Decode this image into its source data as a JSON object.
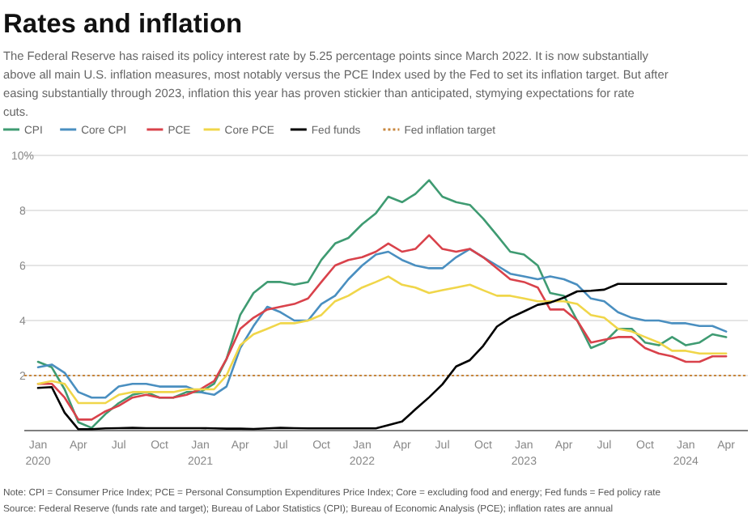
{
  "chart_data": {
    "type": "line",
    "title": "Rates and inflation",
    "subtitle": "The Federal Reserve has raised its policy interest rate by 5.25 percentage points since March 2022. It is now substantially above all main U.S. inflation measures, most notably versus the PCE Index used by the Fed to set its inflation target. But after easing substantially through 2023, inflation this year has proven stickier than anticipated, stymying expectations for rate cuts.",
    "x": [
      "2020-01",
      "2020-02",
      "2020-03",
      "2020-04",
      "2020-05",
      "2020-06",
      "2020-07",
      "2020-08",
      "2020-09",
      "2020-10",
      "2020-11",
      "2020-12",
      "2021-01",
      "2021-02",
      "2021-03",
      "2021-04",
      "2021-05",
      "2021-06",
      "2021-07",
      "2021-08",
      "2021-09",
      "2021-10",
      "2021-11",
      "2021-12",
      "2022-01",
      "2022-02",
      "2022-03",
      "2022-04",
      "2022-05",
      "2022-06",
      "2022-07",
      "2022-08",
      "2022-09",
      "2022-10",
      "2022-11",
      "2022-12",
      "2023-01",
      "2023-02",
      "2023-03",
      "2023-04",
      "2023-05",
      "2023-06",
      "2023-07",
      "2023-08",
      "2023-09",
      "2023-10",
      "2023-11",
      "2023-12",
      "2024-01",
      "2024-02",
      "2024-03",
      "2024-04"
    ],
    "series": [
      {
        "name": "CPI",
        "color": "#3f9b72",
        "values": [
          2.5,
          2.3,
          1.5,
          0.3,
          0.1,
          0.6,
          1.0,
          1.3,
          1.4,
          1.2,
          1.2,
          1.4,
          1.4,
          1.7,
          2.6,
          4.2,
          5.0,
          5.4,
          5.4,
          5.3,
          5.4,
          6.2,
          6.8,
          7.0,
          7.5,
          7.9,
          8.5,
          8.3,
          8.6,
          9.1,
          8.5,
          8.3,
          8.2,
          7.7,
          7.1,
          6.5,
          6.4,
          6.0,
          5.0,
          4.9,
          4.0,
          3.0,
          3.2,
          3.7,
          3.7,
          3.2,
          3.1,
          3.4,
          3.1,
          3.2,
          3.5,
          3.4
        ]
      },
      {
        "name": "Core CPI",
        "color": "#4a8fc0",
        "values": [
          2.3,
          2.4,
          2.1,
          1.4,
          1.2,
          1.2,
          1.6,
          1.7,
          1.7,
          1.6,
          1.6,
          1.6,
          1.4,
          1.3,
          1.6,
          3.0,
          3.8,
          4.5,
          4.3,
          4.0,
          4.0,
          4.6,
          4.9,
          5.5,
          6.0,
          6.4,
          6.5,
          6.2,
          6.0,
          5.9,
          5.9,
          6.3,
          6.6,
          6.3,
          6.0,
          5.7,
          5.6,
          5.5,
          5.6,
          5.5,
          5.3,
          4.8,
          4.7,
          4.3,
          4.1,
          4.0,
          4.0,
          3.9,
          3.9,
          3.8,
          3.8,
          3.6
        ]
      },
      {
        "name": "PCE",
        "color": "#d9424b",
        "values": [
          1.7,
          1.7,
          1.2,
          0.4,
          0.4,
          0.7,
          0.9,
          1.2,
          1.3,
          1.2,
          1.2,
          1.3,
          1.5,
          1.8,
          2.6,
          3.7,
          4.1,
          4.4,
          4.5,
          4.6,
          4.8,
          5.4,
          6.0,
          6.2,
          6.3,
          6.5,
          6.8,
          6.5,
          6.6,
          7.1,
          6.6,
          6.5,
          6.6,
          6.3,
          5.9,
          5.5,
          5.4,
          5.2,
          4.4,
          4.4,
          4.0,
          3.2,
          3.3,
          3.4,
          3.4,
          3.0,
          2.8,
          2.7,
          2.5,
          2.5,
          2.7,
          2.7
        ]
      },
      {
        "name": "Core PCE",
        "color": "#f0d64a",
        "values": [
          1.7,
          1.8,
          1.7,
          1.0,
          1.0,
          1.0,
          1.3,
          1.4,
          1.4,
          1.4,
          1.4,
          1.5,
          1.5,
          1.5,
          2.0,
          3.1,
          3.5,
          3.7,
          3.9,
          3.9,
          4.0,
          4.2,
          4.7,
          4.9,
          5.2,
          5.4,
          5.6,
          5.3,
          5.2,
          5.0,
          5.1,
          5.2,
          5.3,
          5.1,
          4.9,
          4.9,
          4.8,
          4.7,
          4.7,
          4.7,
          4.6,
          4.2,
          4.1,
          3.7,
          3.6,
          3.4,
          3.2,
          2.9,
          2.9,
          2.8,
          2.8,
          2.8
        ]
      },
      {
        "name": "Fed funds",
        "color": "#000000",
        "values": [
          1.55,
          1.58,
          0.65,
          0.05,
          0.05,
          0.08,
          0.09,
          0.1,
          0.09,
          0.09,
          0.09,
          0.09,
          0.09,
          0.08,
          0.07,
          0.07,
          0.06,
          0.08,
          0.1,
          0.09,
          0.08,
          0.08,
          0.08,
          0.08,
          0.08,
          0.08,
          0.2,
          0.33,
          0.77,
          1.21,
          1.68,
          2.33,
          2.56,
          3.08,
          3.78,
          4.1,
          4.33,
          4.57,
          4.65,
          4.83,
          5.06,
          5.08,
          5.12,
          5.33,
          5.33,
          5.33,
          5.33,
          5.33,
          5.33,
          5.33,
          5.33,
          5.33
        ]
      }
    ],
    "ref_lines": [
      {
        "axis": "y",
        "value": 2,
        "label": "Fed inflation target",
        "color": "#c8873f",
        "line_style": "dotted"
      }
    ],
    "xlim": [
      "2019-12-01",
      "2024-05-20"
    ],
    "xticks": [
      {
        "value": "2020-01",
        "label": "Jan\n2020"
      },
      {
        "value": "2020-04",
        "label": "Apr"
      },
      {
        "value": "2020-07",
        "label": "Jul"
      },
      {
        "value": "2020-10",
        "label": "Oct"
      },
      {
        "value": "2021-01",
        "label": "Jan\n2021"
      },
      {
        "value": "2021-04",
        "label": "Apr"
      },
      {
        "value": "2021-07",
        "label": "Jul"
      },
      {
        "value": "2021-10",
        "label": "Oct"
      },
      {
        "value": "2022-01",
        "label": "Jan\n2022"
      },
      {
        "value": "2022-04",
        "label": "Apr"
      },
      {
        "value": "2022-07",
        "label": "Jul"
      },
      {
        "value": "2022-10",
        "label": "Oct"
      },
      {
        "value": "2023-01",
        "label": "Jan\n2023"
      },
      {
        "value": "2023-04",
        "label": "Apr"
      },
      {
        "value": "2023-07",
        "label": "Jul"
      },
      {
        "value": "2023-10",
        "label": "Oct"
      },
      {
        "value": "2024-01",
        "label": "Jan\n2024"
      },
      {
        "value": "2024-04",
        "label": "Apr"
      }
    ],
    "ylim": [
      0,
      10
    ],
    "yticks": [
      2,
      4,
      6,
      8,
      {
        "value": 10,
        "label": "10%"
      }
    ],
    "grid": "y",
    "legend": "top left",
    "line_style": "solid",
    "marker": "none",
    "annotations": [
      "Note: CPI = Consumer Price Index; PCE = Personal Consumption Expenditures Price Index; Core = excluding food and energy; Fed funds = Fed policy rate",
      "Source: Federal Reserve (funds rate and target); Bureau of Labor Statistics (CPI); Bureau of Economic Analysis (PCE); inflation rates are annual"
    ]
  }
}
